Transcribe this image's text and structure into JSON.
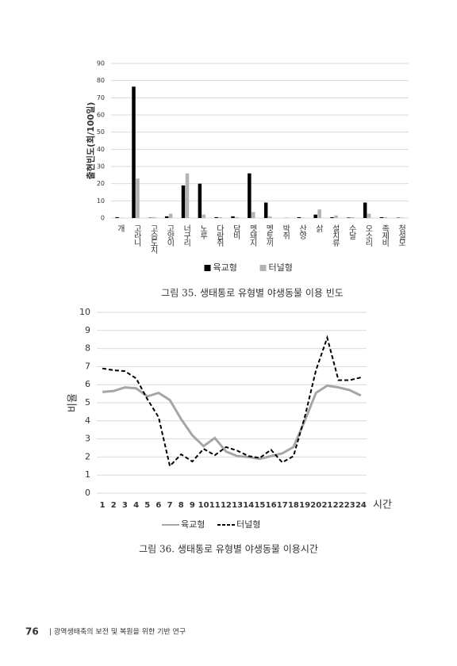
{
  "chart_data": [
    {
      "type": "bar",
      "caption": "그림 35. 생태통로 유형별 야생동물 이용 빈도",
      "ylabel": "출현빈도(회/100일)",
      "categories": [
        "개",
        "고라니",
        "고슴도치",
        "고양이",
        "너구리",
        "노루",
        "다람쥐",
        "담비",
        "멧돼지",
        "멧토끼",
        "박쥐",
        "산양",
        "삵",
        "설치류",
        "수달",
        "오소리",
        "족제비",
        "청설모"
      ],
      "series": [
        {
          "name": "육교형",
          "color": "#000000",
          "values": [
            0.5,
            76.5,
            0.2,
            1,
            19,
            20,
            0.5,
            1,
            26,
            9,
            0,
            0.5,
            2,
            0.5,
            0.3,
            9,
            0.5,
            0.2
          ]
        },
        {
          "name": "터널형",
          "color": "#b3b3b3",
          "values": [
            0.2,
            23,
            0.5,
            2.5,
            26,
            2,
            0.5,
            0.5,
            3.5,
            1,
            0.3,
            0.2,
            5,
            1.5,
            0.5,
            2.5,
            0.5,
            0.3
          ]
        }
      ],
      "ylim": [
        0,
        90
      ],
      "yticks": [
        0,
        10,
        20,
        30,
        40,
        50,
        60,
        70,
        80,
        90
      ],
      "grid": true,
      "legend": "bottom"
    },
    {
      "type": "line",
      "caption": "그림 36. 생태통로 유형별 야생동물 이용시간",
      "ylabel": "비율",
      "xlabel": "시간",
      "categories": [
        "1",
        "2",
        "3",
        "4",
        "5",
        "6",
        "7",
        "8",
        "9",
        "10",
        "11",
        "12",
        "13",
        "14",
        "15",
        "16",
        "17",
        "18",
        "19",
        "20",
        "21",
        "22",
        "23",
        "24"
      ],
      "series": [
        {
          "name": "육교형",
          "color": "#a6a6a6",
          "dash": false,
          "values": [
            5.6,
            5.65,
            5.85,
            5.8,
            5.35,
            5.55,
            5.15,
            4.1,
            3.2,
            2.6,
            3.05,
            2.3,
            2.05,
            2.0,
            1.9,
            2.05,
            2.2,
            2.55,
            4.0,
            5.55,
            5.95,
            5.85,
            5.7,
            5.4
          ]
        },
        {
          "name": "터널형",
          "color": "#000000",
          "dash": true,
          "values": [
            6.9,
            6.8,
            6.75,
            6.35,
            5.2,
            4.2,
            1.5,
            2.15,
            1.75,
            2.45,
            2.1,
            2.55,
            2.35,
            2.05,
            1.95,
            2.4,
            1.7,
            2.05,
            4.2,
            6.8,
            8.6,
            6.25,
            6.25,
            6.4
          ]
        }
      ],
      "ylim": [
        0,
        10
      ],
      "yticks": [
        0,
        1,
        2,
        3,
        4,
        5,
        6,
        7,
        8,
        9,
        10
      ],
      "grid": true,
      "legend": "bottom"
    }
  ],
  "footer": {
    "page": "76",
    "text": "| 광역생태축의 보전 및 복원을 위한 기반 연구"
  }
}
